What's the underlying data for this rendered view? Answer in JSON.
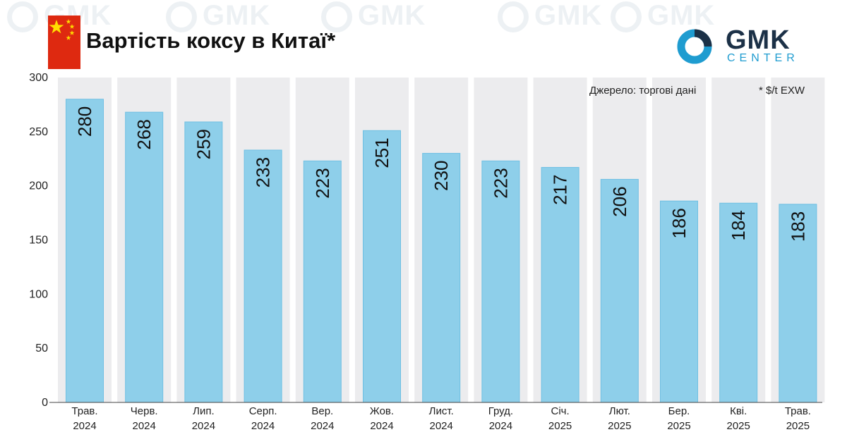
{
  "header": {
    "title": "Вартість коксу в Китаї*",
    "source": "Джерело: торгові дані",
    "unit_note": "* $/t EXW"
  },
  "logo": {
    "line1": "GMK",
    "line2": "CENTER"
  },
  "colors": {
    "bar": "#8ecfea",
    "bar_edge": "#6fc0e3",
    "band": "#ececee",
    "flag": "#de2910",
    "star": "#ffde00",
    "logo_dark": "#1c3147",
    "logo_blue": "#1f9cd0"
  },
  "chart_data": {
    "type": "bar",
    "title": "Вартість коксу в Китаї*",
    "categories": [
      "Трав. 2024",
      "Черв. 2024",
      "Лип. 2024",
      "Серп. 2024",
      "Вер. 2024",
      "Жов. 2024",
      "Лист. 2024",
      "Груд. 2024",
      "Січ. 2025",
      "Лют. 2025",
      "Бер. 2025",
      "Кві. 2025",
      "Трав. 2025"
    ],
    "category_lines": [
      [
        "Трав.",
        "2024"
      ],
      [
        "Черв.",
        "2024"
      ],
      [
        "Лип.",
        "2024"
      ],
      [
        "Серп.",
        "2024"
      ],
      [
        "Вер.",
        "2024"
      ],
      [
        "Жов.",
        "2024"
      ],
      [
        "Лист.",
        "2024"
      ],
      [
        "Груд.",
        "2024"
      ],
      [
        "Січ.",
        "2025"
      ],
      [
        "Лют.",
        "2025"
      ],
      [
        "Бер.",
        "2025"
      ],
      [
        "Кві.",
        "2025"
      ],
      [
        "Трав.",
        "2025"
      ]
    ],
    "values": [
      280,
      268,
      259,
      233,
      223,
      251,
      230,
      223,
      217,
      206,
      186,
      184,
      183
    ],
    "ylim": [
      0,
      300
    ],
    "yticks": [
      0,
      50,
      100,
      150,
      200,
      250,
      300
    ],
    "xlabel": "",
    "ylabel": "",
    "grid": false
  }
}
